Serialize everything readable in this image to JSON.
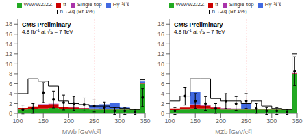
{
  "chart_data": [
    {
      "type": "histogram",
      "title": "CMS Preliminary",
      "subtitle": "4.8 fb⁻¹ at √s = 7 TeV",
      "x_label": "MWb [GeV/c²]",
      "bins": [
        100,
        120,
        140,
        160,
        180,
        200,
        220,
        240,
        260,
        280,
        300,
        320,
        340,
        350
      ],
      "stacked": true,
      "grid": false,
      "legend": "top",
      "series": [
        {
          "name": "WW/WZ/ZZ",
          "color": "#22aa22",
          "values": [
            0.8,
            0.9,
            1.0,
            1.1,
            0.9,
            0.9,
            0.85,
            0.8,
            0.8,
            0.8,
            0.8,
            0.8,
            6.0
          ]
        },
        {
          "name": "tt",
          "color": "#cc0000",
          "values": [
            0.3,
            0.5,
            0.8,
            0.8,
            0.4,
            0.3,
            0.2,
            0.15,
            0.1,
            0.05,
            0.05,
            0.05,
            0.1
          ]
        },
        {
          "name": "Single-top",
          "color": "#aa33aa",
          "values": [
            0.0,
            0.0,
            0.05,
            0.05,
            0.05,
            0.05,
            0.05,
            0.05,
            0.05,
            0.05,
            0.05,
            0.05,
            0.05
          ]
        },
        {
          "name": "Hγ⁻¹ℓ⁺ℓ⁻",
          "color": "#4169e1",
          "values": [
            0.0,
            0.0,
            0.0,
            0.0,
            0.0,
            0.0,
            0.0,
            0.8,
            0.9,
            1.2,
            0.3,
            0.0,
            0.3
          ]
        },
        {
          "name": "h→Zq (Br 1%)",
          "type": "step",
          "color": "#000000",
          "values": [
            4.0,
            7.0,
            6.5,
            5.5,
            2.5,
            2.0,
            1.8,
            1.5,
            1.5,
            1.2,
            1.0,
            0.8,
            6.8
          ]
        },
        {
          "type": "errorbar",
          "color": "#000000",
          "marker": "circle",
          "x": [
            110,
            130,
            150,
            170,
            190,
            210,
            230,
            250,
            270,
            290,
            310,
            330,
            345
          ],
          "values": [
            0.8,
            1.0,
            4.2,
            2.8,
            2.2,
            2.0,
            1.8,
            1.5,
            1.2,
            0.5,
            0.5,
            0.3,
            3.2
          ],
          "errors": [
            0.9,
            1.0,
            2.0,
            1.7,
            1.5,
            1.4,
            1.3,
            1.2,
            1.1,
            0.7,
            0.7,
            0.5,
            1.8
          ]
        }
      ],
      "vlines": [
        {
          "x": 250,
          "color": "#ff0000",
          "line_style": "dotted"
        }
      ],
      "xlim": [
        100,
        350
      ],
      "ylim": [
        0,
        19
      ],
      "xticks": [
        100,
        150,
        200,
        250,
        300,
        350
      ],
      "yticks": [
        0,
        2,
        4,
        6,
        8,
        10,
        12,
        14,
        16,
        18
      ]
    },
    {
      "type": "histogram",
      "title": "CMS Preliminary",
      "subtitle": "4.8 fb⁻¹ at √s = 7 TeV",
      "x_label": "MZb [GeV/c²]",
      "bins": [
        100,
        120,
        140,
        160,
        180,
        200,
        220,
        240,
        260,
        280,
        300,
        320,
        340,
        350
      ],
      "stacked": true,
      "grid": false,
      "legend": "top",
      "series": [
        {
          "name": "WW/WZ/ZZ",
          "color": "#22aa22",
          "values": [
            0.7,
            0.8,
            1.0,
            1.0,
            0.9,
            0.8,
            0.8,
            0.8,
            0.8,
            0.8,
            0.8,
            0.8,
            8.0
          ]
        },
        {
          "name": "tt",
          "color": "#cc0000",
          "values": [
            0.3,
            0.4,
            0.8,
            0.6,
            0.3,
            0.2,
            0.15,
            0.1,
            0.08,
            0.06,
            0.05,
            0.05,
            0.1
          ]
        },
        {
          "name": "Single-top",
          "color": "#aa33aa",
          "values": [
            0.0,
            0.0,
            0.05,
            0.05,
            0.05,
            0.05,
            0.05,
            0.05,
            0.05,
            0.05,
            0.05,
            0.05,
            0.05
          ]
        },
        {
          "name": "Hγ⁻¹ℓ⁺ℓ⁻",
          "color": "#4169e1",
          "values": [
            0.0,
            0.0,
            2.5,
            0.0,
            0.0,
            0.0,
            0.0,
            1.0,
            0.0,
            0.0,
            0.0,
            0.0,
            0.0
          ]
        },
        {
          "name": "h→Zq (Br 1%)",
          "type": "step",
          "color": "#000000",
          "values": [
            2.5,
            3.5,
            7.0,
            7.0,
            3.0,
            2.5,
            2.5,
            2.0,
            2.5,
            1.5,
            1.0,
            0.8,
            12.0
          ]
        },
        {
          "type": "errorbar",
          "color": "#000000",
          "marker": "circle",
          "x": [
            110,
            130,
            150,
            170,
            190,
            210,
            230,
            250,
            270,
            290,
            310,
            330,
            345
          ],
          "values": [
            0.5,
            3.5,
            2.5,
            2.0,
            1.0,
            2.5,
            2.0,
            2.5,
            1.0,
            0.5,
            0.5,
            0.3,
            8.5
          ],
          "errors": [
            0.7,
            1.8,
            1.5,
            1.4,
            1.0,
            1.5,
            1.4,
            1.5,
            1.0,
            0.7,
            0.7,
            0.5,
            2.9
          ]
        }
      ],
      "vlines": [
        {
          "x": 250,
          "color": "#ff0000",
          "line_style": "dotted"
        }
      ],
      "xlim": [
        100,
        350
      ],
      "ylim": [
        0,
        19
      ],
      "xticks": [
        100,
        150,
        200,
        250,
        300,
        350
      ],
      "yticks": [
        0,
        2,
        4,
        6,
        8,
        10,
        12,
        14,
        16,
        18
      ]
    }
  ]
}
